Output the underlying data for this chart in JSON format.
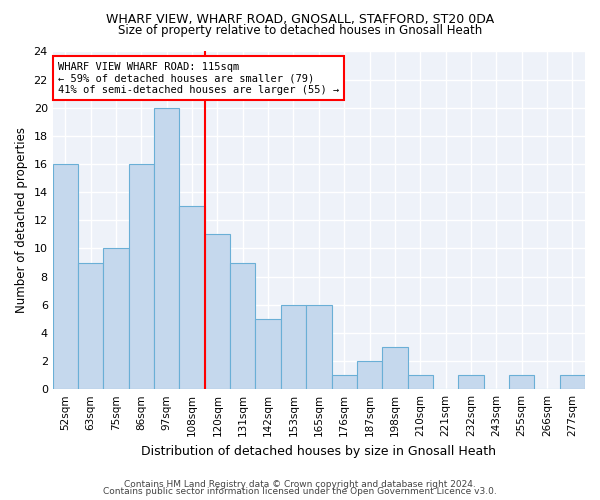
{
  "title1": "WHARF VIEW, WHARF ROAD, GNOSALL, STAFFORD, ST20 0DA",
  "title2": "Size of property relative to detached houses in Gnosall Heath",
  "xlabel": "Distribution of detached houses by size in Gnosall Heath",
  "ylabel": "Number of detached properties",
  "categories": [
    "52sqm",
    "63sqm",
    "75sqm",
    "86sqm",
    "97sqm",
    "108sqm",
    "120sqm",
    "131sqm",
    "142sqm",
    "153sqm",
    "165sqm",
    "176sqm",
    "187sqm",
    "198sqm",
    "210sqm",
    "221sqm",
    "232sqm",
    "243sqm",
    "255sqm",
    "266sqm",
    "277sqm"
  ],
  "values": [
    16,
    9,
    10,
    16,
    20,
    13,
    11,
    9,
    5,
    6,
    6,
    1,
    2,
    3,
    1,
    0,
    1,
    0,
    1,
    0,
    1
  ],
  "bar_color": "#c5d8ed",
  "bar_edge_color": "#6aafd6",
  "reference_line_x": 5.5,
  "annotation_text": "WHARF VIEW WHARF ROAD: 115sqm\n← 59% of detached houses are smaller (79)\n41% of semi-detached houses are larger (55) →",
  "ylim": [
    0,
    24
  ],
  "yticks": [
    0,
    2,
    4,
    6,
    8,
    10,
    12,
    14,
    16,
    18,
    20,
    22,
    24
  ],
  "footer1": "Contains HM Land Registry data © Crown copyright and database right 2024.",
  "footer2": "Contains public sector information licensed under the Open Government Licence v3.0.",
  "bg_color": "#eef2f9"
}
